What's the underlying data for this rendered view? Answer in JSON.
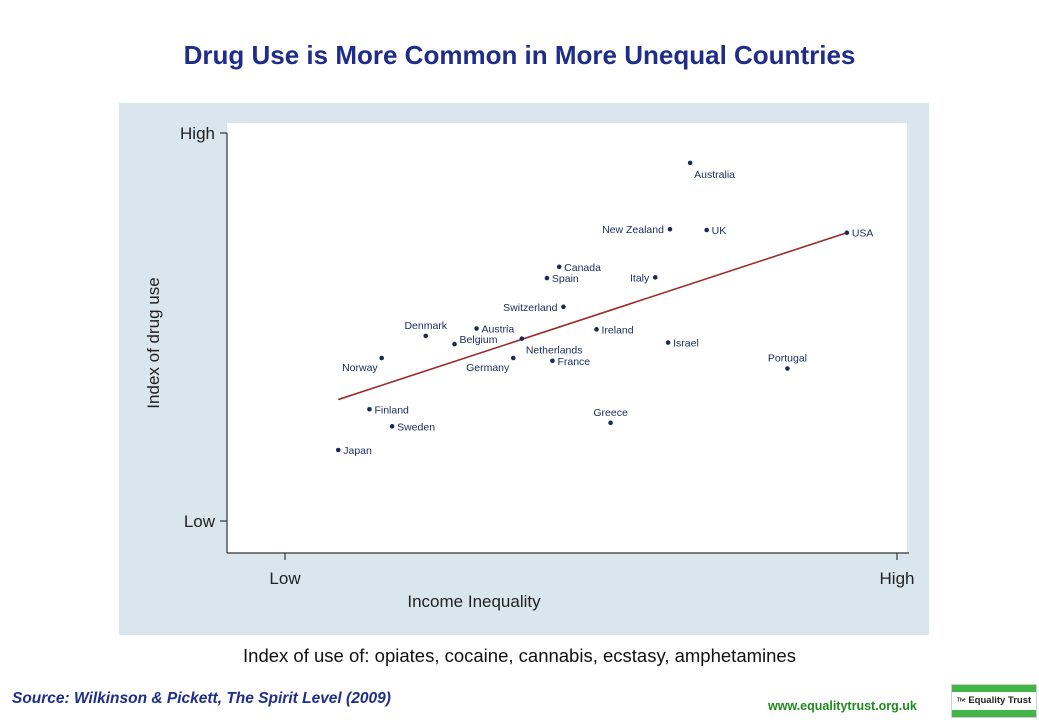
{
  "page": {
    "title": "Drug Use is More Common in More Unequal Countries",
    "subtitle": "Index of use of: opiates, cocaine, cannabis, ecstasy, amphetamines",
    "source": "Source: Wilkinson & Pickett, The Spirit Level (2009)",
    "url": "www.equalitytrust.org.uk",
    "logo": {
      "prefix": "The",
      "name": "Equality Trust"
    }
  },
  "colors": {
    "title": "#1f2d8a",
    "panel": "#d9e6ee",
    "plot_bg": "#ffffff",
    "point": "#1a2a5a",
    "label": "#1a2a5a",
    "fit_line": "#9b2b2b",
    "url": "#1e8a1e",
    "logo_green": "#43b649"
  },
  "chart_data": {
    "type": "scatter",
    "xlabel": "Income Inequality",
    "ylabel": "Index of drug use",
    "xlim": [
      0,
      100
    ],
    "ylim": [
      0,
      100
    ],
    "x_ticks": [
      {
        "value": 0,
        "label": "Low"
      },
      {
        "value": 100,
        "label": "High"
      }
    ],
    "y_ticks": [
      {
        "value": 0,
        "label": "Low"
      },
      {
        "value": 100,
        "label": "High"
      }
    ],
    "grid": false,
    "legend": "none",
    "points": [
      {
        "label": "Japan",
        "x": 8.7,
        "y": 18.3,
        "label_side": "right"
      },
      {
        "label": "Finland",
        "x": 13.8,
        "y": 28.8,
        "label_side": "right"
      },
      {
        "label": "Sweden",
        "x": 17.5,
        "y": 24.4,
        "label_side": "right"
      },
      {
        "label": "Norway",
        "x": 15.8,
        "y": 42.0,
        "label_side": "below-left"
      },
      {
        "label": "Denmark",
        "x": 23.0,
        "y": 47.7,
        "label_side": "above"
      },
      {
        "label": "Belgium",
        "x": 27.7,
        "y": 45.6,
        "label_side": "above-right"
      },
      {
        "label": "Austria",
        "x": 31.3,
        "y": 49.6,
        "label_side": "right"
      },
      {
        "label": "Germany",
        "x": 37.3,
        "y": 42.0,
        "label_side": "below-left"
      },
      {
        "label": "Netherlands",
        "x": 38.7,
        "y": 47.0,
        "label_side": "below-right"
      },
      {
        "label": "France",
        "x": 43.7,
        "y": 41.3,
        "label_side": "right"
      },
      {
        "label": "Switzerland",
        "x": 45.5,
        "y": 55.2,
        "label_side": "left"
      },
      {
        "label": "Canada",
        "x": 44.8,
        "y": 65.5,
        "label_side": "right"
      },
      {
        "label": "Spain",
        "x": 42.8,
        "y": 62.6,
        "label_side": "right"
      },
      {
        "label": "Ireland",
        "x": 50.9,
        "y": 49.4,
        "label_side": "right"
      },
      {
        "label": "Greece",
        "x": 53.2,
        "y": 25.3,
        "label_side": "above"
      },
      {
        "label": "Italy",
        "x": 60.5,
        "y": 62.8,
        "label_side": "left"
      },
      {
        "label": "Israel",
        "x": 62.6,
        "y": 46.0,
        "label_side": "right"
      },
      {
        "label": "New Zealand",
        "x": 62.9,
        "y": 75.2,
        "label_side": "left"
      },
      {
        "label": "Australia",
        "x": 66.2,
        "y": 92.3,
        "label_side": "below-right"
      },
      {
        "label": "UK",
        "x": 68.9,
        "y": 75.0,
        "label_side": "right"
      },
      {
        "label": "Portugal",
        "x": 82.1,
        "y": 39.3,
        "label_side": "above"
      },
      {
        "label": "USA",
        "x": 91.8,
        "y": 74.3,
        "label_side": "right"
      }
    ],
    "fit_line": {
      "x": [
        8.7,
        91.8
      ],
      "y": [
        31.3,
        74.3
      ]
    }
  }
}
